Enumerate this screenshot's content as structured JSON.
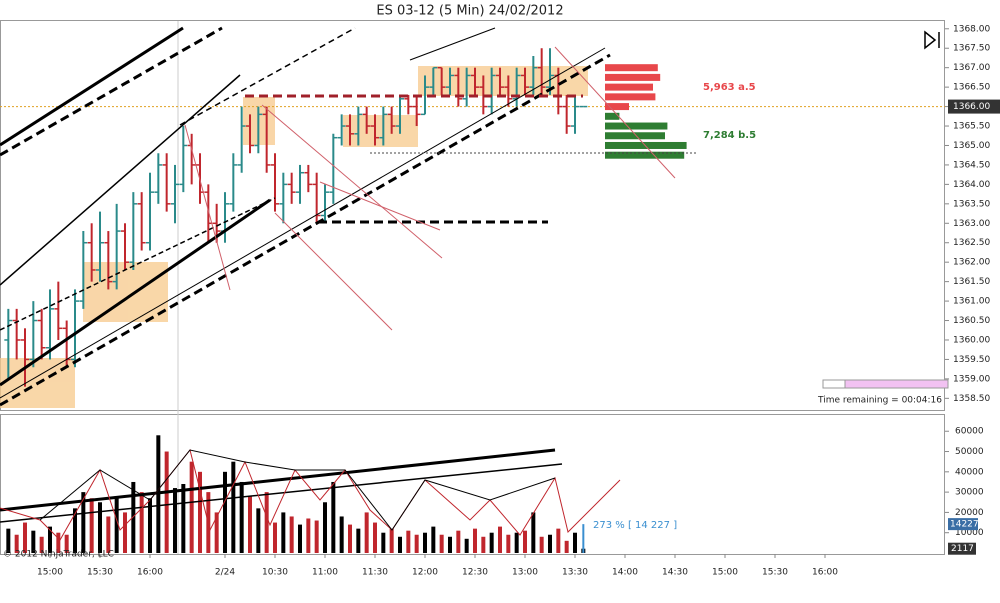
{
  "chart_data": [
    {
      "type": "ohlc",
      "title": "ES 03-12 (5 Min)  24/02/2012",
      "x": [
        1,
        2,
        3,
        4,
        5,
        6,
        7,
        8,
        9,
        10,
        11,
        12,
        13,
        14,
        15,
        16,
        17,
        18,
        19,
        20,
        21,
        22,
        23,
        24,
        25,
        26,
        27,
        28,
        29,
        30,
        31,
        32,
        33,
        34,
        35,
        36,
        37,
        38,
        39,
        40,
        41,
        42,
        43,
        44,
        45,
        46,
        47,
        48,
        49,
        50,
        51,
        52,
        53,
        54,
        55,
        56,
        57,
        58,
        59,
        60,
        61,
        62,
        63,
        64,
        65,
        66,
        67,
        68,
        69,
        70
      ],
      "ohlc": [
        [
          1360.0,
          1360.8,
          1359.0,
          1360.5
        ],
        [
          1360.5,
          1360.8,
          1359.5,
          1360.0
        ],
        [
          1360.0,
          1360.3,
          1358.8,
          1359.5
        ],
        [
          1359.5,
          1361.0,
          1359.3,
          1360.5
        ],
        [
          1360.5,
          1360.8,
          1359.5,
          1359.8
        ],
        [
          1359.8,
          1361.3,
          1359.5,
          1360.8
        ],
        [
          1360.8,
          1361.5,
          1360.0,
          1360.3
        ],
        [
          1360.3,
          1360.5,
          1359.3,
          1359.5
        ],
        [
          1359.5,
          1361.3,
          1359.3,
          1361.0
        ],
        [
          1361.0,
          1362.8,
          1360.8,
          1362.5
        ],
        [
          1362.5,
          1363.0,
          1361.5,
          1361.8
        ],
        [
          1361.8,
          1363.3,
          1361.5,
          1362.5
        ],
        [
          1362.5,
          1362.8,
          1361.3,
          1361.5
        ],
        [
          1361.5,
          1363.5,
          1361.3,
          1362.8
        ],
        [
          1362.8,
          1363.0,
          1361.8,
          1362.0
        ],
        [
          1362.0,
          1363.8,
          1361.8,
          1363.5
        ],
        [
          1363.5,
          1363.8,
          1362.3,
          1362.5
        ],
        [
          1362.5,
          1364.3,
          1362.3,
          1363.8
        ],
        [
          1363.8,
          1364.8,
          1363.5,
          1364.5
        ],
        [
          1364.5,
          1364.8,
          1363.3,
          1363.5
        ],
        [
          1363.5,
          1364.5,
          1363.0,
          1364.0
        ],
        [
          1364.0,
          1365.5,
          1363.8,
          1365.0
        ],
        [
          1365.0,
          1365.3,
          1364.0,
          1364.5
        ],
        [
          1364.5,
          1364.8,
          1363.5,
          1363.8
        ],
        [
          1363.8,
          1364.0,
          1362.5,
          1363.0
        ],
        [
          1363.0,
          1363.5,
          1362.5,
          1362.8
        ],
        [
          1362.8,
          1363.8,
          1362.5,
          1363.5
        ],
        [
          1363.5,
          1364.8,
          1363.3,
          1364.5
        ],
        [
          1364.5,
          1366.0,
          1364.3,
          1365.5
        ],
        [
          1365.5,
          1365.8,
          1364.8,
          1365.0
        ],
        [
          1365.0,
          1366.0,
          1364.8,
          1365.8
        ],
        [
          1365.8,
          1366.0,
          1364.3,
          1364.5
        ],
        [
          1364.5,
          1364.8,
          1363.3,
          1363.5
        ],
        [
          1363.5,
          1364.3,
          1363.0,
          1364.0
        ],
        [
          1364.0,
          1364.3,
          1363.5,
          1363.8
        ],
        [
          1363.8,
          1364.5,
          1363.5,
          1364.3
        ],
        [
          1364.3,
          1364.5,
          1363.8,
          1364.0
        ],
        [
          1364.0,
          1364.3,
          1363.0,
          1363.2
        ],
        [
          1363.2,
          1364.0,
          1363.0,
          1363.8
        ],
        [
          1363.8,
          1365.3,
          1363.5,
          1365.2
        ],
        [
          1365.2,
          1365.8,
          1365.0,
          1365.5
        ],
        [
          1365.5,
          1365.8,
          1365.0,
          1365.3
        ],
        [
          1365.3,
          1366.0,
          1365.0,
          1365.8
        ],
        [
          1365.8,
          1366.0,
          1365.3,
          1365.5
        ],
        [
          1365.5,
          1365.8,
          1365.0,
          1365.2
        ],
        [
          1365.2,
          1366.0,
          1365.0,
          1365.8
        ],
        [
          1365.8,
          1366.0,
          1365.3,
          1365.5
        ],
        [
          1365.5,
          1366.3,
          1365.3,
          1366.2
        ],
        [
          1366.2,
          1366.3,
          1365.8,
          1366.0
        ],
        [
          1366.0,
          1366.3,
          1365.5,
          1365.8
        ],
        [
          1365.8,
          1366.8,
          1365.8,
          1366.5
        ],
        [
          1366.5,
          1367.0,
          1366.3,
          1367.0
        ],
        [
          1367.0,
          1367.0,
          1366.3,
          1366.5
        ],
        [
          1366.5,
          1367.0,
          1366.3,
          1366.8
        ],
        [
          1366.8,
          1367.0,
          1366.0,
          1366.2
        ],
        [
          1366.2,
          1367.0,
          1366.0,
          1366.8
        ],
        [
          1366.8,
          1367.0,
          1366.3,
          1366.5
        ],
        [
          1366.5,
          1366.8,
          1365.8,
          1366.0
        ],
        [
          1366.0,
          1367.0,
          1365.8,
          1366.8
        ],
        [
          1366.8,
          1367.0,
          1366.3,
          1366.5
        ],
        [
          1366.5,
          1366.8,
          1366.0,
          1366.2
        ],
        [
          1366.2,
          1367.0,
          1366.0,
          1366.8
        ],
        [
          1366.8,
          1367.0,
          1366.3,
          1366.5
        ],
        [
          1366.5,
          1367.3,
          1366.3,
          1367.0
        ],
        [
          1367.0,
          1367.5,
          1366.3,
          1366.5
        ],
        [
          1366.5,
          1367.5,
          1366.3,
          1366.8
        ],
        [
          1366.8,
          1367.0,
          1365.8,
          1366.0
        ],
        [
          1366.0,
          1366.3,
          1365.3,
          1365.5
        ],
        [
          1365.5,
          1366.3,
          1365.3,
          1366.0
        ],
        [
          1366.0,
          1366.0,
          1366.0,
          1366.0
        ]
      ],
      "up_color": "#2a8a8a",
      "down_color": "#c0262d",
      "xlim": [
        0,
        113.4
      ],
      "ylim": [
        1358.2,
        1368.2
      ],
      "yticks": [
        {
          "value": 1358.5,
          "label": "1358.50"
        },
        {
          "value": 1359,
          "label": "1359.00"
        },
        {
          "value": 1359.5,
          "label": "1359.50"
        },
        {
          "value": 1360,
          "label": "1360.00"
        },
        {
          "value": 1360.5,
          "label": "1360.50"
        },
        {
          "value": 1361,
          "label": "1361.00"
        },
        {
          "value": 1361.5,
          "label": "1361.50"
        },
        {
          "value": 1362,
          "label": "1362.00"
        },
        {
          "value": 1362.5,
          "label": "1362.50"
        },
        {
          "value": 1363,
          "label": "1363.00"
        },
        {
          "value": 1363.5,
          "label": "1363.50"
        },
        {
          "value": 1364,
          "label": "1364.00"
        },
        {
          "value": 1364.5,
          "label": "1364.50"
        },
        {
          "value": 1365,
          "label": "1365.00"
        },
        {
          "value": 1365.5,
          "label": "1365.50"
        },
        {
          "value": 1366,
          "label": "1366.00"
        },
        {
          "value": 1366.5,
          "label": "1366.50"
        },
        {
          "value": 1367,
          "label": "1367.00"
        },
        {
          "value": 1367.5,
          "label": "1367.50"
        },
        {
          "value": 1368,
          "label": "1368.00"
        }
      ],
      "last_price": {
        "value": 1366,
        "label": "1366.00"
      },
      "depth": {
        "asks": [
          {
            "price": 1367.0,
            "size": 1100
          },
          {
            "price": 1366.75,
            "size": 1150
          },
          {
            "price": 1366.5,
            "size": 1000
          },
          {
            "price": 1366.25,
            "size": 1050
          },
          {
            "price": 1366.0,
            "size": 500
          }
        ],
        "bids": [
          {
            "price": 1365.75,
            "size": 300
          },
          {
            "price": 1365.5,
            "size": 1300
          },
          {
            "price": 1365.25,
            "size": 1250
          },
          {
            "price": 1365.0,
            "size": 1700
          },
          {
            "price": 1364.75,
            "size": 1650
          }
        ],
        "ask_color": "#e8474b",
        "bid_color": "#2e7d32",
        "ask_label": "5,963 a.5",
        "bid_label": "7,284 b.5"
      },
      "time_remaining": "Time remaining = 00:04:16"
    },
    {
      "type": "bar",
      "x": [
        1,
        2,
        3,
        4,
        5,
        6,
        7,
        8,
        9,
        10,
        11,
        12,
        13,
        14,
        15,
        16,
        17,
        18,
        19,
        20,
        21,
        22,
        23,
        24,
        25,
        26,
        27,
        28,
        29,
        30,
        31,
        32,
        33,
        34,
        35,
        36,
        37,
        38,
        39,
        40,
        41,
        42,
        43,
        44,
        45,
        46,
        47,
        48,
        49,
        50,
        51,
        52,
        53,
        54,
        55,
        56,
        57,
        58,
        59,
        60,
        61,
        62,
        63,
        64,
        65,
        66,
        67,
        68,
        69,
        70
      ],
      "values": [
        12000,
        9000,
        15000,
        11000,
        8000,
        13000,
        10000,
        9000,
        22000,
        30000,
        27000,
        25000,
        18000,
        28000,
        20000,
        35000,
        30000,
        27000,
        58000,
        50000,
        32000,
        34000,
        45000,
        40000,
        30000,
        20000,
        40000,
        45000,
        35000,
        28000,
        22000,
        30000,
        15000,
        20000,
        18000,
        14000,
        17000,
        16000,
        25000,
        35000,
        18000,
        14000,
        12000,
        20000,
        15000,
        10000,
        12000,
        8000,
        11000,
        9000,
        10000,
        13000,
        9000,
        8000,
        11000,
        7000,
        12000,
        8000,
        10000,
        13000,
        9000,
        10000,
        11000,
        20000,
        8000,
        9000,
        12000,
        6000,
        10000,
        2117
      ],
      "up_color": "#000000",
      "down_color": "#c0262d",
      "xlim": [
        0,
        113.4
      ],
      "ylim": [
        0,
        68000
      ],
      "yticks": [
        10000,
        20000,
        30000,
        40000,
        50000,
        60000
      ],
      "xticks": [
        {
          "value": 6,
          "label": "15:00"
        },
        {
          "value": 12,
          "label": "15:30"
        },
        {
          "value": 18,
          "label": "16:00"
        },
        {
          "value": 27,
          "label": "2/24"
        },
        {
          "value": 33,
          "label": "10:30"
        },
        {
          "value": 39,
          "label": "11:00"
        },
        {
          "value": 45,
          "label": "11:30"
        },
        {
          "value": 51,
          "label": "12:00"
        },
        {
          "value": 57,
          "label": "12:30"
        },
        {
          "value": 63,
          "label": "13:00"
        },
        {
          "value": 69,
          "label": "13:30"
        },
        {
          "value": 75,
          "label": "14:00"
        },
        {
          "value": 81,
          "label": "14:30"
        },
        {
          "value": 87,
          "label": "15:00"
        },
        {
          "value": 93,
          "label": "15:30"
        },
        {
          "value": 99,
          "label": "16:00"
        }
      ],
      "average": {
        "value": 14227,
        "label": "14227"
      },
      "annotation": "273 % [ 14 227 ]",
      "copyright": "© 2012 NinjaTrader, LLC"
    }
  ]
}
